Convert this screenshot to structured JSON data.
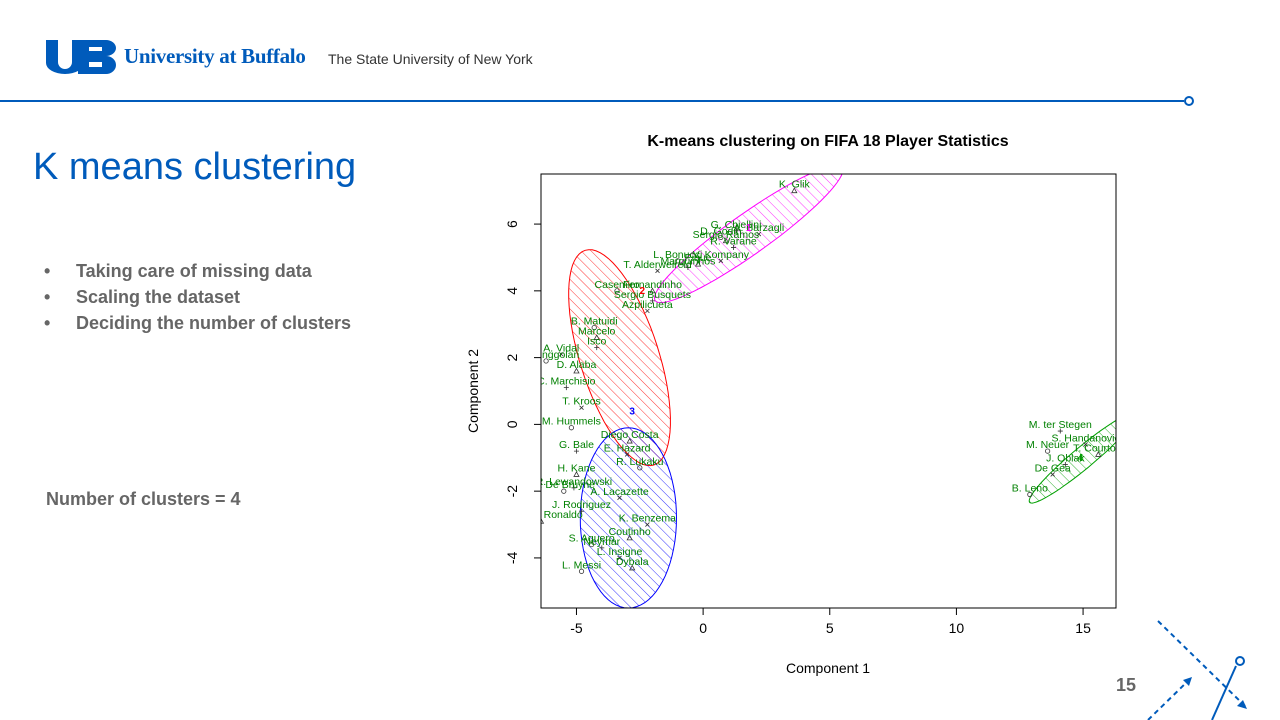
{
  "header": {
    "logo_text": "UB",
    "university": "University at Buffalo",
    "subtitle": "The State University of New York"
  },
  "slide": {
    "title": "K means clustering",
    "bullets": [
      "Taking care of missing data",
      "Scaling the dataset",
      "Deciding the number of clusters"
    ],
    "clusters_note": "Number of clusters = 4",
    "page_number": "15"
  },
  "colors": {
    "brand_blue": "#005bbb",
    "cluster_1": "#ff00ff",
    "cluster_2": "#ff0000",
    "cluster_3": "#0000ff",
    "cluster_4": "#00a000",
    "label_green": "#008000"
  },
  "chart_data": {
    "type": "scatter",
    "title": "K-means clustering on FIFA 18 Player Statistics",
    "xlabel": "Component 1",
    "ylabel": "Component 2",
    "xlim": [
      -6.4,
      16.3
    ],
    "ylim": [
      -5.5,
      7.5
    ],
    "xticks": [
      -5,
      0,
      5,
      10,
      15
    ],
    "yticks": [
      -4,
      -2,
      0,
      2,
      4,
      6
    ],
    "cluster_ids": [
      "1",
      "2",
      "3",
      "4"
    ],
    "clusters": [
      {
        "id": "1",
        "color": "#ff00ff",
        "center": [
          1.8,
          5.8
        ],
        "ellipse": {
          "cx": 1.8,
          "cy": 5.7,
          "rx": 4.2,
          "ry": 0.65,
          "angle_deg": 28
        }
      },
      {
        "id": "2",
        "color": "#ff0000",
        "center": [
          -2.4,
          3.9
        ],
        "ellipse": {
          "cx": -3.3,
          "cy": 2.0,
          "rx": 3.5,
          "ry": 1.5,
          "angle_deg": 115
        }
      },
      {
        "id": "3",
        "color": "#0000ff",
        "center": [
          -2.8,
          0.3
        ],
        "ellipse": {
          "cx": -2.95,
          "cy": -2.8,
          "rx": 2.7,
          "ry": 1.9,
          "angle_deg": 90
        }
      },
      {
        "id": "4",
        "color": "#00a000",
        "center": [
          14.9,
          -1.1
        ],
        "ellipse": {
          "cx": 15.0,
          "cy": -1.0,
          "rx": 2.5,
          "ry": 0.35,
          "angle_deg": 32
        }
      }
    ],
    "points": [
      {
        "label": "K. Glik",
        "x": 3.6,
        "y": 7.0
      },
      {
        "label": "G. Chiellini",
        "x": 1.3,
        "y": 5.8
      },
      {
        "label": "A. Barzagli",
        "x": 2.2,
        "y": 5.7
      },
      {
        "label": "D. Godin",
        "x": 0.7,
        "y": 5.6
      },
      {
        "label": "Sergio Ramos",
        "x": 0.9,
        "y": 5.5
      },
      {
        "label": "R. Varane",
        "x": 1.2,
        "y": 5.3
      },
      {
        "label": "V. Kompany",
        "x": 0.7,
        "y": 4.9
      },
      {
        "label": "L. Bonucci",
        "x": -1.0,
        "y": 4.9
      },
      {
        "label": "Pique",
        "x": -0.2,
        "y": 4.8
      },
      {
        "label": "Marquinhos",
        "x": -0.6,
        "y": 4.7
      },
      {
        "label": "T. Alderweireld",
        "x": -1.8,
        "y": 4.6
      },
      {
        "label": "Casemiro",
        "x": -3.4,
        "y": 4.0
      },
      {
        "label": "Fernandinho",
        "x": -2.0,
        "y": 4.0
      },
      {
        "label": "Sergio Busquets",
        "x": -2.0,
        "y": 3.7
      },
      {
        "label": "Azpilicueta",
        "x": -2.2,
        "y": 3.4
      },
      {
        "label": "B. Matuidi",
        "x": -4.3,
        "y": 2.9
      },
      {
        "label": "Marcelo",
        "x": -4.2,
        "y": 2.6
      },
      {
        "label": "Isco",
        "x": -4.2,
        "y": 2.3
      },
      {
        "label": "A. Vidal",
        "x": -5.6,
        "y": 2.1
      },
      {
        "label": "R. Nainggolan",
        "x": -6.2,
        "y": 1.9
      },
      {
        "label": "D. Alaba",
        "x": -5.0,
        "y": 1.6
      },
      {
        "label": "C. Marchisio",
        "x": -5.4,
        "y": 1.1
      },
      {
        "label": "T. Kroos",
        "x": -4.8,
        "y": 0.5
      },
      {
        "label": "M. Hummels",
        "x": -5.2,
        "y": -0.1
      },
      {
        "label": "Diego Costa",
        "x": -2.9,
        "y": -0.5
      },
      {
        "label": "G. Bale",
        "x": -5.0,
        "y": -0.8
      },
      {
        "label": "E. Hazard",
        "x": -3.0,
        "y": -0.9
      },
      {
        "label": "R. Lukaku",
        "x": -2.5,
        "y": -1.3
      },
      {
        "label": "H. Kane",
        "x": -5.0,
        "y": -1.5
      },
      {
        "label": "R. Lewandowski",
        "x": -5.1,
        "y": -1.9
      },
      {
        "label": "A. Lacazette",
        "x": -3.3,
        "y": -2.2
      },
      {
        "label": "K. De Bruyne",
        "x": -5.5,
        "y": -2.0
      },
      {
        "label": "Cristiano Ronaldo",
        "x": -6.4,
        "y": -2.9
      },
      {
        "label": "J. Rodriguez",
        "x": -4.8,
        "y": -2.6
      },
      {
        "label": "K. Benzema",
        "x": -2.2,
        "y": -3.0
      },
      {
        "label": "S. Aguero",
        "x": -4.4,
        "y": -3.6
      },
      {
        "label": "Coutinho",
        "x": -2.9,
        "y": -3.4
      },
      {
        "label": "Neymar",
        "x": -4.0,
        "y": -3.7
      },
      {
        "label": "L. Insigne",
        "x": -3.3,
        "y": -4.0
      },
      {
        "label": "L. Messi",
        "x": -4.8,
        "y": -4.4
      },
      {
        "label": "Dybala",
        "x": -2.8,
        "y": -4.3
      },
      {
        "label": "M. ter Stegen",
        "x": 14.1,
        "y": -0.2
      },
      {
        "label": "S. Handanovic",
        "x": 15.1,
        "y": -0.6
      },
      {
        "label": "M. Neuer",
        "x": 13.6,
        "y": -0.8
      },
      {
        "label": "T. Courtois",
        "x": 15.6,
        "y": -0.9
      },
      {
        "label": "J. Oblak",
        "x": 14.3,
        "y": -1.2
      },
      {
        "label": "De Gea",
        "x": 13.8,
        "y": -1.5
      },
      {
        "label": "B. Leno",
        "x": 12.9,
        "y": -2.1
      }
    ]
  }
}
